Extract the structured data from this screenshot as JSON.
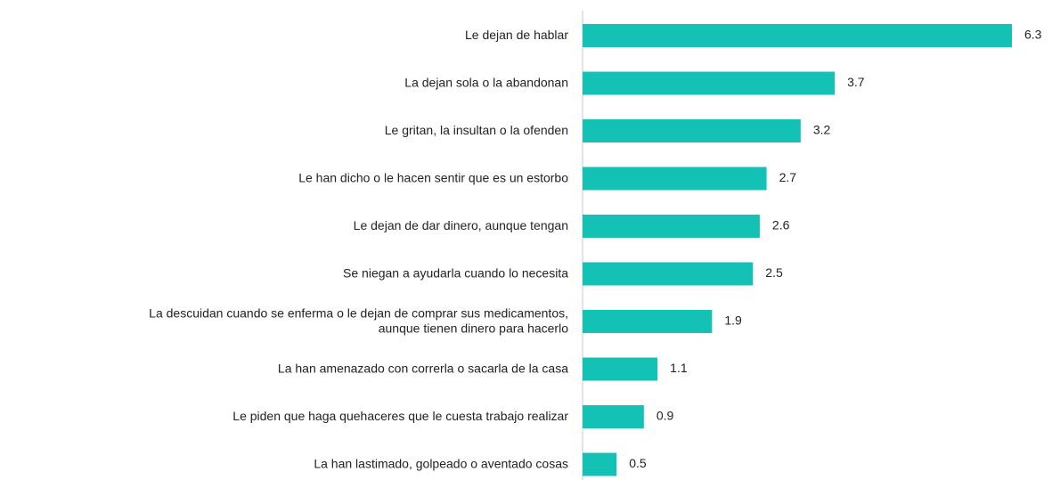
{
  "chart_data": {
    "type": "barh",
    "categories": [
      "Le dejan de hablar",
      "La dejan sola o la abandonan",
      "Le gritan, la insultan o la ofenden",
      "Le han dicho o le hacen sentir que es un estorbo",
      "Le dejan de dar dinero, aunque tengan",
      "Se niegan a ayudarla cuando lo necesita",
      "La descuidan cuando se enferma o le dejan de comprar sus medicamentos,\naunque tienen dinero para hacerlo",
      "La han amenazado con correrla o sacarla de la casa",
      "Le piden que haga quehaceres que le cuesta trabajo realizar",
      "La han lastimado, golpeado o aventado cosas"
    ],
    "values": [
      6.3,
      3.7,
      3.2,
      2.7,
      2.6,
      2.5,
      1.9,
      1.1,
      0.9,
      0.5
    ],
    "color": "#14c2b5"
  }
}
